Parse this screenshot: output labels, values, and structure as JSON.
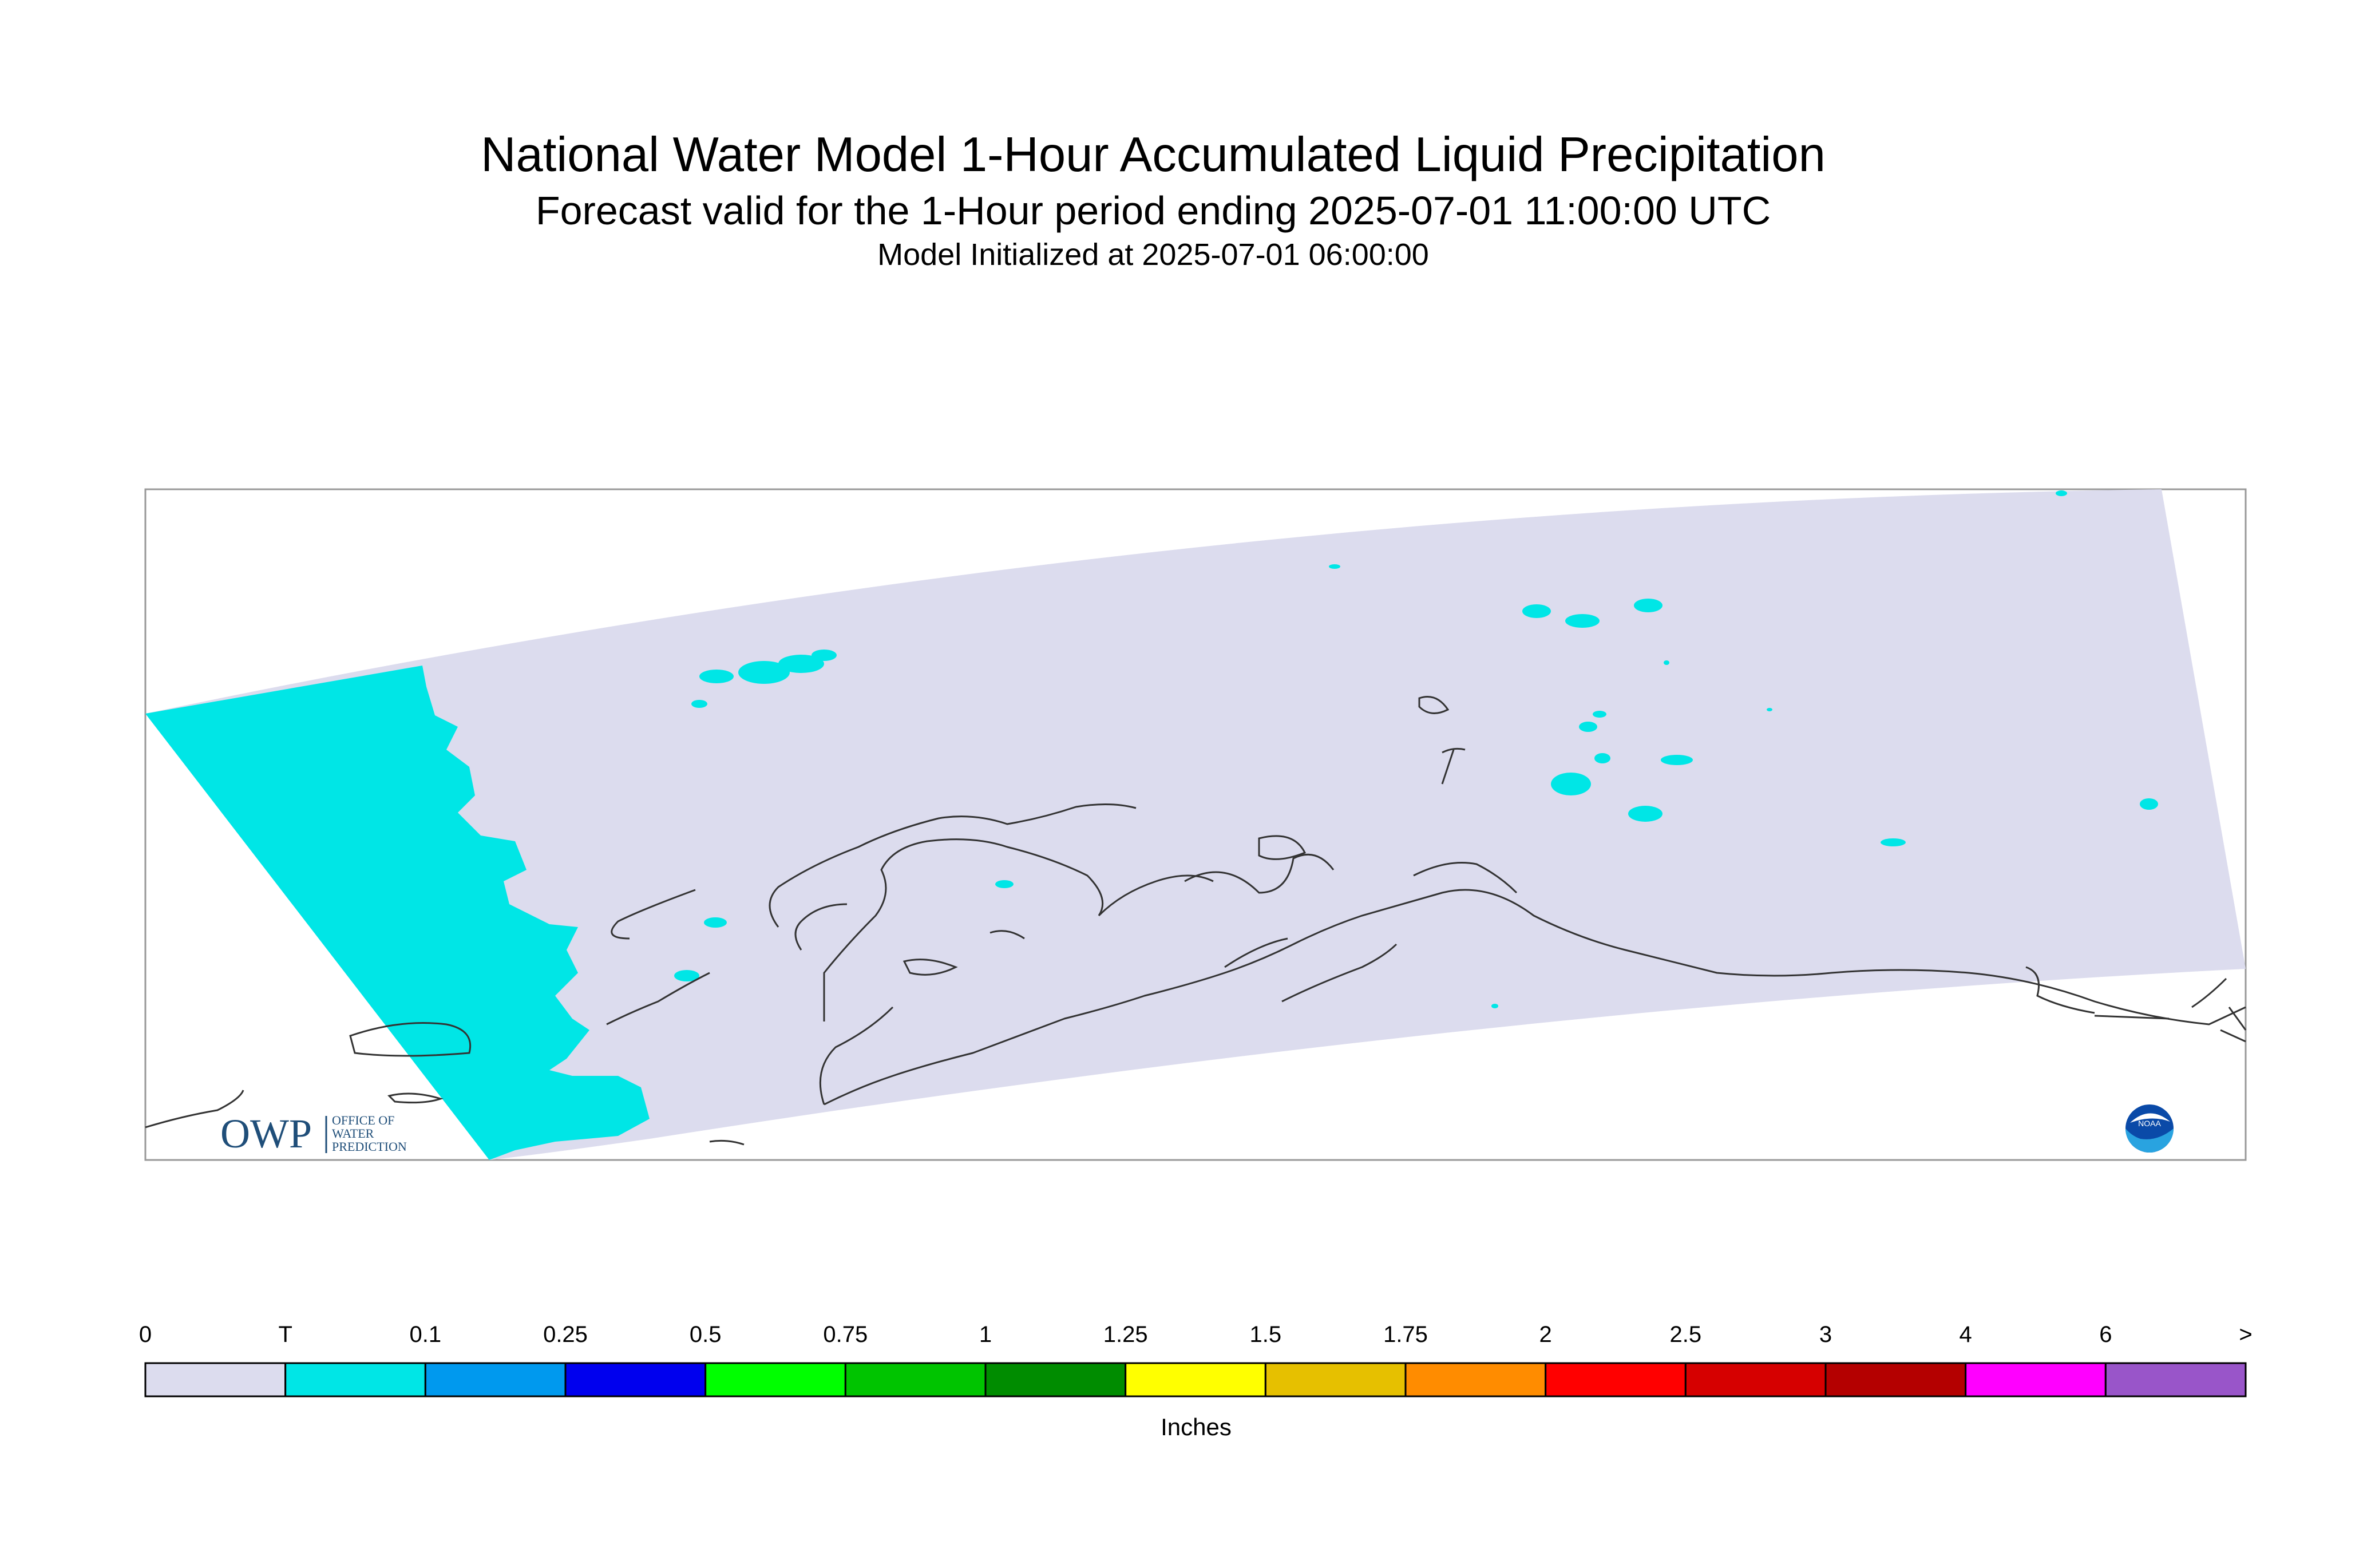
{
  "title": "National Water Model 1-Hour Accumulated Liquid Precipitation",
  "subtitle": "Forecast valid for the 1-Hour period ending 2025-07-01 11:00:00 UTC",
  "init_text": "Model Initialized at 2025-07-01 06:00:00",
  "logo_owp": {
    "letters": "OWP",
    "line1": "OFFICE OF",
    "line2": "WATER",
    "line3": "PREDICTION"
  },
  "logo_noaa": "NOAA",
  "legend": {
    "units": "Inches",
    "labels": [
      "0",
      "T",
      "0.1",
      "0.25",
      "0.5",
      "0.75",
      "1",
      "1.25",
      "1.5",
      "1.75",
      "2",
      "2.5",
      "3",
      "4",
      "6",
      ">"
    ],
    "colors": [
      "#dcdcee",
      "#00e6e6",
      "#0099ee",
      "#0000ee",
      "#00ff00",
      "#00c400",
      "#008c00",
      "#ffff00",
      "#e6c000",
      "#ff8c00",
      "#ff0000",
      "#d60000",
      "#b40000",
      "#ff00ff",
      "#9955c9"
    ]
  },
  "colors": {
    "domain_fill": "#dcdcee",
    "trace_fill": "#00e6e6",
    "coastline": "#333333",
    "frame": "#999999"
  }
}
